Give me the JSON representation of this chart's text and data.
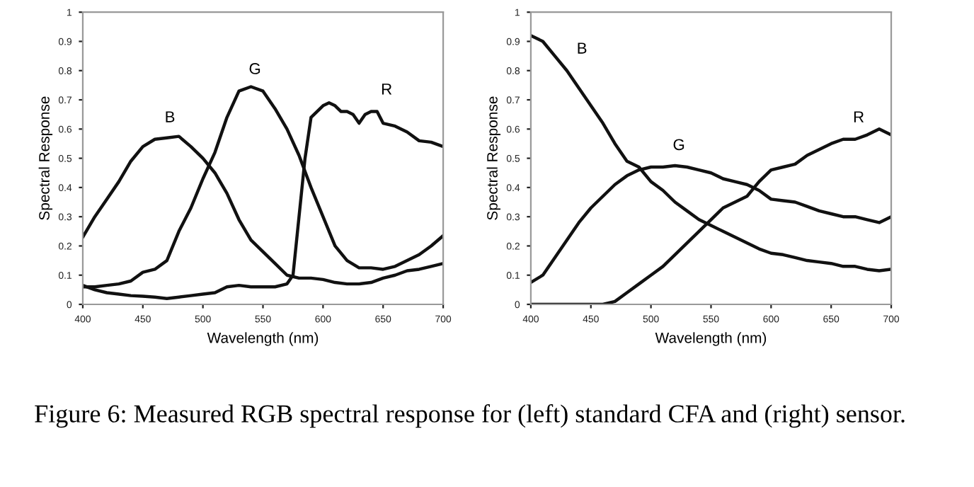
{
  "chart_data": [
    {
      "type": "line",
      "xlabel": "Wavelength (nm)",
      "ylabel": "Spectral Response",
      "xlim": [
        400,
        700
      ],
      "ylim": [
        0,
        1
      ],
      "xticks": [
        400,
        450,
        500,
        550,
        600,
        650,
        700
      ],
      "yticks": [
        0,
        0.1,
        0.2,
        0.3,
        0.4,
        0.5,
        0.6,
        0.7,
        0.8,
        0.9,
        1
      ],
      "grid": false,
      "legend": false,
      "marker": "none",
      "line_style": "solid",
      "series": [
        {
          "color": "#111111",
          "x": [
            400,
            410,
            420,
            430,
            440,
            450,
            460,
            470,
            480,
            490,
            500,
            510,
            520,
            530,
            540,
            550,
            560,
            570,
            580,
            590,
            600,
            610,
            620,
            630,
            640,
            650,
            660,
            670,
            680,
            690,
            700
          ],
          "values": [
            0.23,
            0.3,
            0.36,
            0.42,
            0.49,
            0.54,
            0.565,
            0.57,
            0.575,
            0.54,
            0.5,
            0.45,
            0.38,
            0.29,
            0.22,
            0.18,
            0.14,
            0.1,
            0.09,
            0.09,
            0.085,
            0.075,
            0.07,
            0.07,
            0.075,
            0.09,
            0.1,
            0.115,
            0.12,
            0.13,
            0.14
          ]
        },
        {
          "color": "#111111",
          "x": [
            400,
            410,
            420,
            430,
            440,
            450,
            460,
            470,
            480,
            490,
            500,
            510,
            520,
            530,
            540,
            550,
            560,
            570,
            580,
            590,
            600,
            610,
            620,
            630,
            640,
            650,
            660,
            670,
            680,
            690,
            700
          ],
          "values": [
            0.06,
            0.06,
            0.065,
            0.07,
            0.08,
            0.11,
            0.12,
            0.15,
            0.25,
            0.33,
            0.43,
            0.52,
            0.64,
            0.73,
            0.745,
            0.73,
            0.67,
            0.6,
            0.51,
            0.4,
            0.3,
            0.2,
            0.15,
            0.125,
            0.125,
            0.12,
            0.13,
            0.15,
            0.17,
            0.2,
            0.235
          ]
        },
        {
          "color": "#111111",
          "x": [
            400,
            410,
            420,
            430,
            440,
            450,
            460,
            470,
            480,
            490,
            500,
            510,
            520,
            530,
            540,
            550,
            560,
            570,
            575,
            580,
            585,
            590,
            600,
            605,
            610,
            615,
            620,
            625,
            630,
            635,
            640,
            645,
            650,
            660,
            670,
            680,
            690,
            700
          ],
          "values": [
            0.065,
            0.05,
            0.04,
            0.035,
            0.03,
            0.028,
            0.025,
            0.02,
            0.025,
            0.03,
            0.035,
            0.04,
            0.06,
            0.065,
            0.06,
            0.06,
            0.06,
            0.07,
            0.1,
            0.3,
            0.5,
            0.64,
            0.68,
            0.69,
            0.68,
            0.66,
            0.66,
            0.65,
            0.62,
            0.65,
            0.66,
            0.66,
            0.62,
            0.61,
            0.59,
            0.56,
            0.555,
            0.54
          ]
        }
      ],
      "annotations": [
        {
          "text": "B",
          "x": 460,
          "y": 0.565
        },
        {
          "text": "G",
          "x": 530,
          "y": 0.73
        },
        {
          "text": "R",
          "x": 640,
          "y": 0.66
        },
        "Figure 6: Measured RGB spectral response for (left) standard CFA and (right) sensor."
      ]
    },
    {
      "type": "line",
      "xlabel": "Wavelength (nm)",
      "ylabel": "Spectral Response",
      "xlim": [
        400,
        700
      ],
      "ylim": [
        0,
        1
      ],
      "xticks": [
        400,
        450,
        500,
        550,
        600,
        650,
        700
      ],
      "yticks": [
        0,
        0.1,
        0.2,
        0.3,
        0.4,
        0.5,
        0.6,
        0.7,
        0.8,
        0.9,
        1
      ],
      "grid": false,
      "legend": false,
      "marker": "none",
      "line_style": "solid",
      "series": [
        {
          "color": "#111111",
          "x": [
            400,
            410,
            420,
            430,
            440,
            450,
            460,
            470,
            480,
            490,
            500,
            510,
            520,
            530,
            540,
            550,
            560,
            570,
            580,
            590,
            600,
            610,
            620,
            630,
            640,
            650,
            660,
            670,
            680,
            690,
            700
          ],
          "values": [
            0.92,
            0.9,
            0.85,
            0.8,
            0.74,
            0.68,
            0.62,
            0.55,
            0.49,
            0.47,
            0.42,
            0.39,
            0.35,
            0.32,
            0.29,
            0.27,
            0.25,
            0.23,
            0.21,
            0.19,
            0.175,
            0.17,
            0.16,
            0.15,
            0.145,
            0.14,
            0.13,
            0.13,
            0.12,
            0.115,
            0.12
          ]
        },
        {
          "color": "#111111",
          "x": [
            400,
            410,
            420,
            430,
            440,
            450,
            460,
            470,
            480,
            490,
            500,
            510,
            520,
            530,
            540,
            550,
            560,
            570,
            580,
            590,
            600,
            610,
            620,
            630,
            640,
            650,
            660,
            670,
            680,
            690,
            700
          ],
          "values": [
            0.075,
            0.1,
            0.16,
            0.22,
            0.28,
            0.33,
            0.37,
            0.41,
            0.44,
            0.46,
            0.47,
            0.47,
            0.475,
            0.47,
            0.46,
            0.45,
            0.43,
            0.42,
            0.41,
            0.39,
            0.36,
            0.355,
            0.35,
            0.335,
            0.32,
            0.31,
            0.3,
            0.3,
            0.29,
            0.28,
            0.3
          ]
        },
        {
          "color": "#111111",
          "x": [
            400,
            450,
            460,
            470,
            480,
            490,
            500,
            510,
            520,
            530,
            540,
            550,
            560,
            570,
            580,
            590,
            600,
            610,
            620,
            630,
            640,
            650,
            660,
            670,
            680,
            690,
            700
          ],
          "values": [
            0,
            0,
            0,
            0.01,
            0.04,
            0.07,
            0.1,
            0.13,
            0.17,
            0.21,
            0.25,
            0.29,
            0.33,
            0.35,
            0.37,
            0.42,
            0.46,
            0.47,
            0.48,
            0.51,
            0.53,
            0.55,
            0.565,
            0.565,
            0.58,
            0.6,
            0.58
          ]
        }
      ],
      "annotations": [
        {
          "text": "B",
          "x": 430,
          "y": 0.8
        },
        {
          "text": "G",
          "x": 510,
          "y": 0.47
        },
        {
          "text": "R",
          "x": 660,
          "y": 0.565
        }
      ]
    }
  ]
}
